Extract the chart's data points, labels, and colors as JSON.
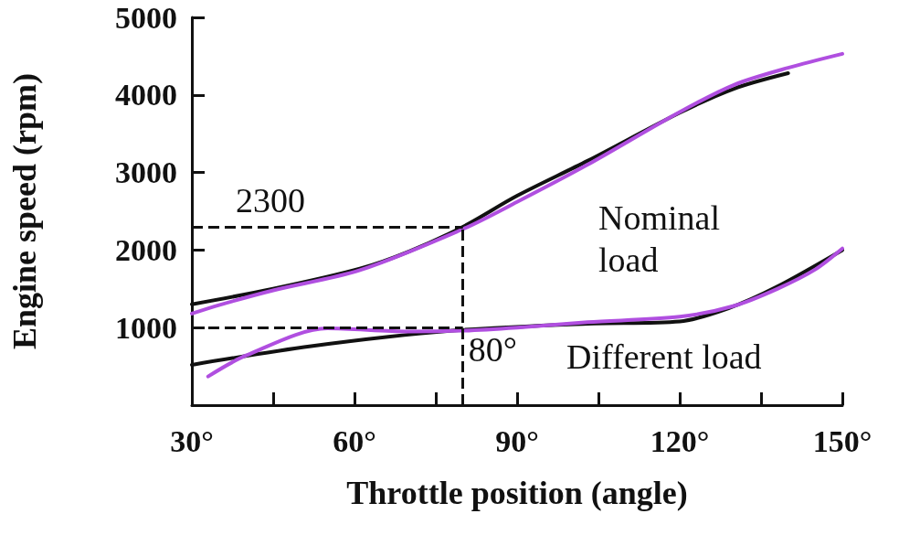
{
  "chart_data": {
    "type": "line",
    "xlabel": "Throttle position (angle)",
    "ylabel": "Engine speed (rpm)",
    "xlim": [
      30,
      150
    ],
    "ylim": [
      0,
      5000
    ],
    "xticks": [
      {
        "value": 30,
        "label": "30°"
      },
      {
        "value": 45,
        "label": null
      },
      {
        "value": 60,
        "label": "60°"
      },
      {
        "value": 75,
        "label": null
      },
      {
        "value": 90,
        "label": "90°"
      },
      {
        "value": 105,
        "label": null
      },
      {
        "value": 120,
        "label": "120°"
      },
      {
        "value": 135,
        "label": null
      },
      {
        "value": 150,
        "label": "150°"
      }
    ],
    "yticks": [
      1000,
      2000,
      3000,
      4000,
      5000
    ],
    "grid": false,
    "marker": "none",
    "line_style": "solid",
    "series": [
      {
        "color": "#111111",
        "x": [
          30,
          45,
          61,
          70,
          80,
          90,
          103,
          120,
          130,
          140
        ],
        "values": [
          1300,
          1500,
          1760,
          1980,
          2300,
          2700,
          3150,
          3770,
          4080,
          4280
        ]
      },
      {
        "color": "#111111",
        "x": [
          30,
          52,
          78,
          103,
          120,
          129,
          138,
          150
        ],
        "values": [
          520,
          760,
          960,
          1050,
          1080,
          1250,
          1530,
          2000
        ]
      },
      {
        "color": "#b04fe0",
        "x": [
          30,
          35,
          45,
          61,
          80,
          90,
          103,
          120,
          130,
          140,
          150
        ],
        "values": [
          1180,
          1290,
          1480,
          1740,
          2270,
          2620,
          3100,
          3780,
          4130,
          4350,
          4530
        ]
      },
      {
        "color": "#b04fe0",
        "x": [
          33,
          40,
          55,
          70,
          80,
          90,
          103,
          120,
          130,
          138,
          145,
          150
        ],
        "values": [
          370,
          640,
          990,
          950,
          960,
          1000,
          1070,
          1140,
          1280,
          1500,
          1750,
          2020
        ]
      }
    ],
    "ref_lines": [
      {
        "axis": "y",
        "value": 2300,
        "line_style": "dashed",
        "color": "#111111",
        "label": "2300"
      },
      {
        "axis": "y",
        "value": 1000,
        "line_style": "dashed",
        "color": "#111111"
      },
      {
        "axis": "x",
        "value": 80,
        "line_style": "dashed",
        "color": "#111111",
        "label": "80°"
      }
    ],
    "annotations": [
      "Nominal\nload",
      "Different load"
    ]
  }
}
